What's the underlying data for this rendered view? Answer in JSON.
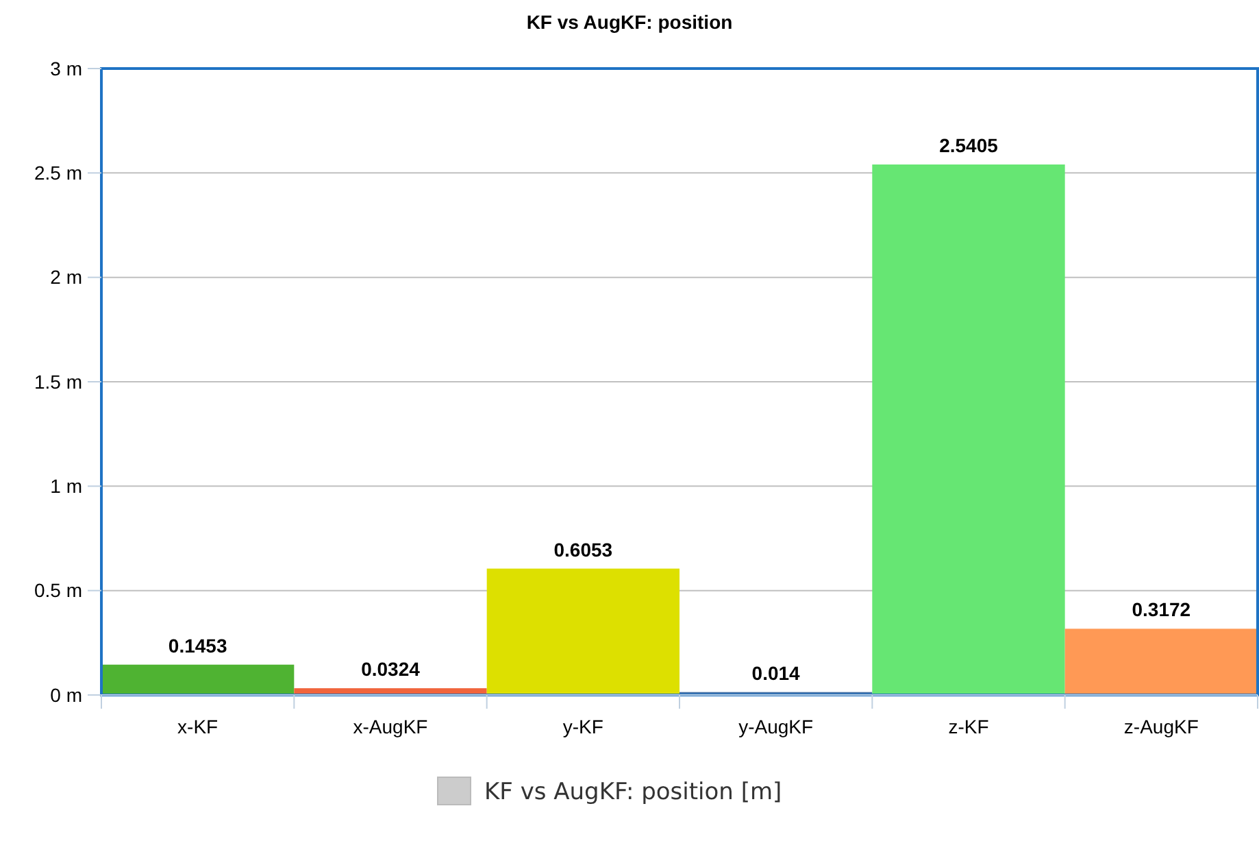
{
  "chart_data": {
    "type": "bar",
    "title": "KF vs AugKF: position",
    "categories": [
      "x-KF",
      "x-AugKF",
      "y-KF",
      "y-AugKF",
      "z-KF",
      "z-AugKF"
    ],
    "series": [
      {
        "name": "KF vs AugKF: position [m]",
        "color": "#cccccc",
        "values": [
          0.1453,
          0.0324,
          0.6053,
          0.014,
          2.5405,
          0.3172
        ],
        "colors": [
          "#4fb332",
          "#f0643c",
          "#dde000",
          "#4572a7",
          "#66e673",
          "#ff9955"
        ]
      }
    ],
    "data_labels": true,
    "ylim": [
      0,
      3
    ],
    "yticks": [
      {
        "value": 0,
        "label": "0 m"
      },
      {
        "value": 0.5,
        "label": "0.5 m"
      },
      {
        "value": 1,
        "label": "1 m"
      },
      {
        "value": 1.5,
        "label": "1.5 m"
      },
      {
        "value": 2,
        "label": "2 m"
      },
      {
        "value": 2.5,
        "label": "2.5 m"
      },
      {
        "value": 3,
        "label": "3 m"
      }
    ],
    "grid": "y",
    "legend": "bottom"
  }
}
